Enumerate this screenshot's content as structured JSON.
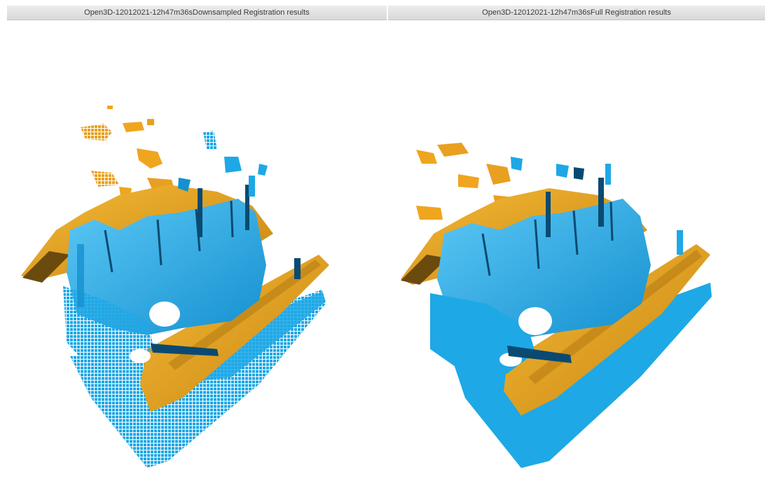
{
  "windows": {
    "downsampled": {
      "title": "Open3D-12012021-12h47m36sDownsampled Registration results"
    },
    "full": {
      "title": "Open3D-12012021-12h47m36sFull Registration results"
    }
  },
  "colors": {
    "source_cloud": "#f0a51e",
    "target_cloud": "#1ea8e6",
    "source_dark": "#6b4a0e",
    "target_dark": "#0a4a72",
    "background": "#ffffff",
    "titlebar": "#e3e3e3"
  }
}
